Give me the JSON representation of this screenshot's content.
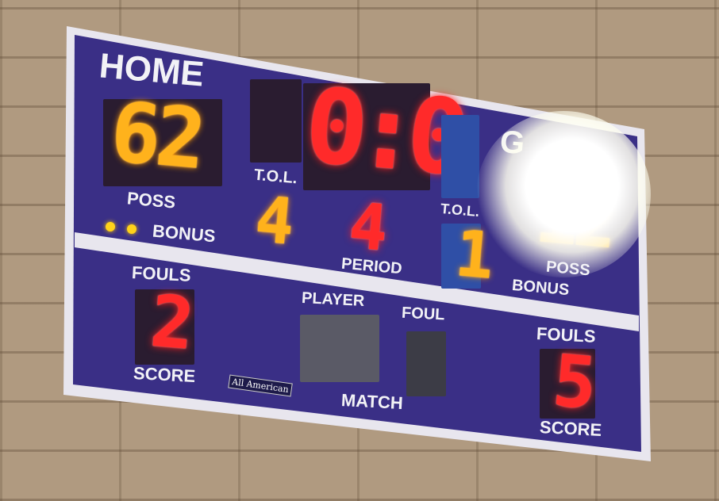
{
  "home": {
    "label": "HOME",
    "score": "62",
    "poss_label": "POSS",
    "bonus_label": "BONUS",
    "tol_label": "T.O.L.",
    "tol": "4",
    "fouls_label": "FOULS",
    "fouls": "2",
    "score_label": "SCORE"
  },
  "clock": {
    "display": "0:0"
  },
  "period": {
    "label": "PERIOD",
    "value": "4"
  },
  "guest": {
    "label": "G",
    "score": "12",
    "poss_label": "POSS",
    "bonus_label": "BONUS",
    "tol_label": "T.O.L.",
    "tol": "1",
    "fouls_label": "FOULS",
    "fouls": "5",
    "score_label": "SCORE"
  },
  "player_foul": {
    "player_label": "PLAYER",
    "foul_label": "FOUL",
    "match_label": "MATCH"
  },
  "logo": {
    "text": "All American"
  },
  "colors": {
    "board": "#3a2f86",
    "amber_led": "#ffb21c",
    "red_led": "#ff2a2a",
    "frame": "#e8e6ee"
  }
}
